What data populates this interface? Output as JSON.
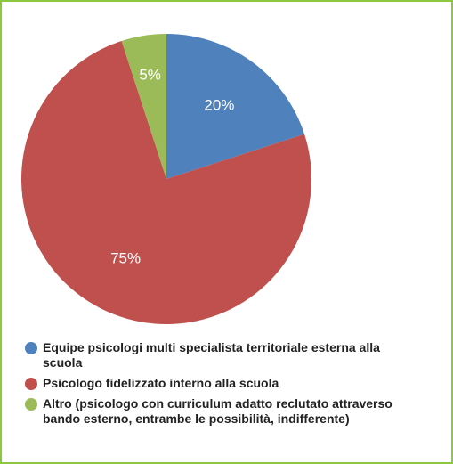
{
  "chart_data": {
    "type": "pie",
    "categories": [
      "Equipe psicologi multi specialista territoriale esterna alla scuola",
      "Psicologo fidelizzato interno alla scuola",
      "Altro (psicologo con curriculum adatto reclutato attraverso bando esterno, entrambe le possibilità, indifferente)"
    ],
    "values": [
      20,
      75,
      5
    ],
    "value_labels": [
      "20%",
      "75%",
      "5%"
    ],
    "colors": [
      "#4f81bd",
      "#c0504d",
      "#9bbb59"
    ]
  }
}
